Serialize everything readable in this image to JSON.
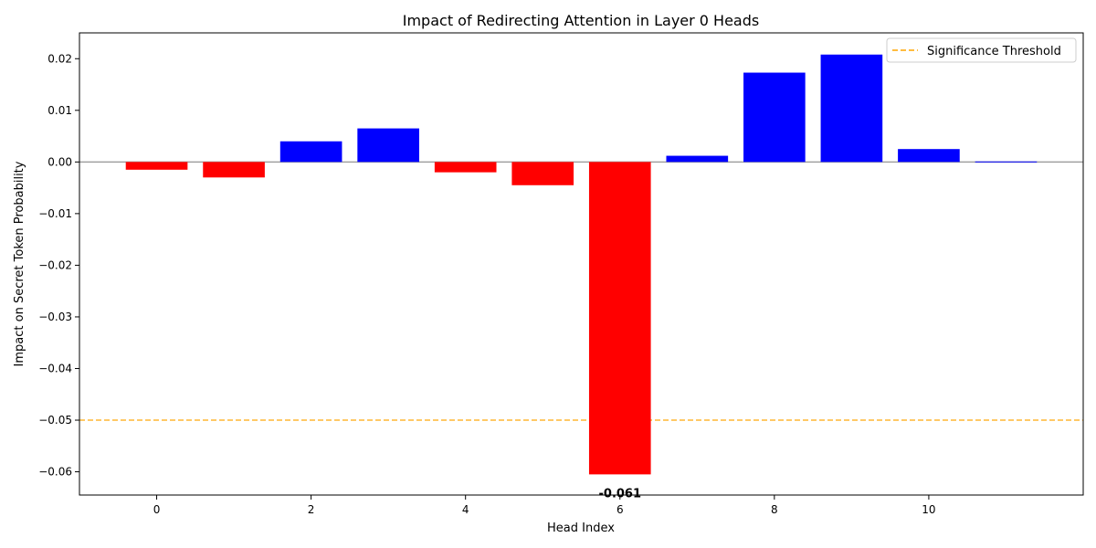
{
  "chart_data": {
    "type": "bar",
    "title": "Impact of Redirecting Attention in Layer 0 Heads",
    "xlabel": "Head Index",
    "ylabel": "Impact on Secret Token Probability",
    "x": [
      0,
      1,
      2,
      3,
      4,
      5,
      6,
      7,
      8,
      9,
      10,
      11
    ],
    "values": [
      -0.0015,
      -0.003,
      0.004,
      0.0065,
      -0.002,
      -0.0045,
      -0.0605,
      0.0012,
      0.0173,
      0.0208,
      0.0025,
      0.0001
    ],
    "xlim": [
      -1,
      12
    ],
    "ylim": [
      -0.0645,
      0.025
    ],
    "xticks": [
      0,
      2,
      4,
      6,
      8,
      10
    ],
    "yticks": [
      0.02,
      0.01,
      0.0,
      -0.01,
      -0.02,
      -0.03,
      -0.04,
      -0.05,
      -0.06
    ],
    "ytick_labels": [
      "0.02",
      "0.01",
      "0.00",
      "−0.01",
      "−0.02",
      "−0.03",
      "−0.04",
      "−0.05",
      "−0.06"
    ],
    "colors": {
      "positive": "#0000ff",
      "negative": "#ff0000",
      "threshold": "#ffa500",
      "zero_line": "#a0a0a0"
    },
    "threshold": {
      "value": -0.05,
      "label": "Significance Threshold"
    },
    "annotation": {
      "head": 6,
      "text": "-0.061"
    },
    "legend": {
      "location": "top-right",
      "entries": [
        "Significance Threshold"
      ]
    },
    "grid": false
  }
}
